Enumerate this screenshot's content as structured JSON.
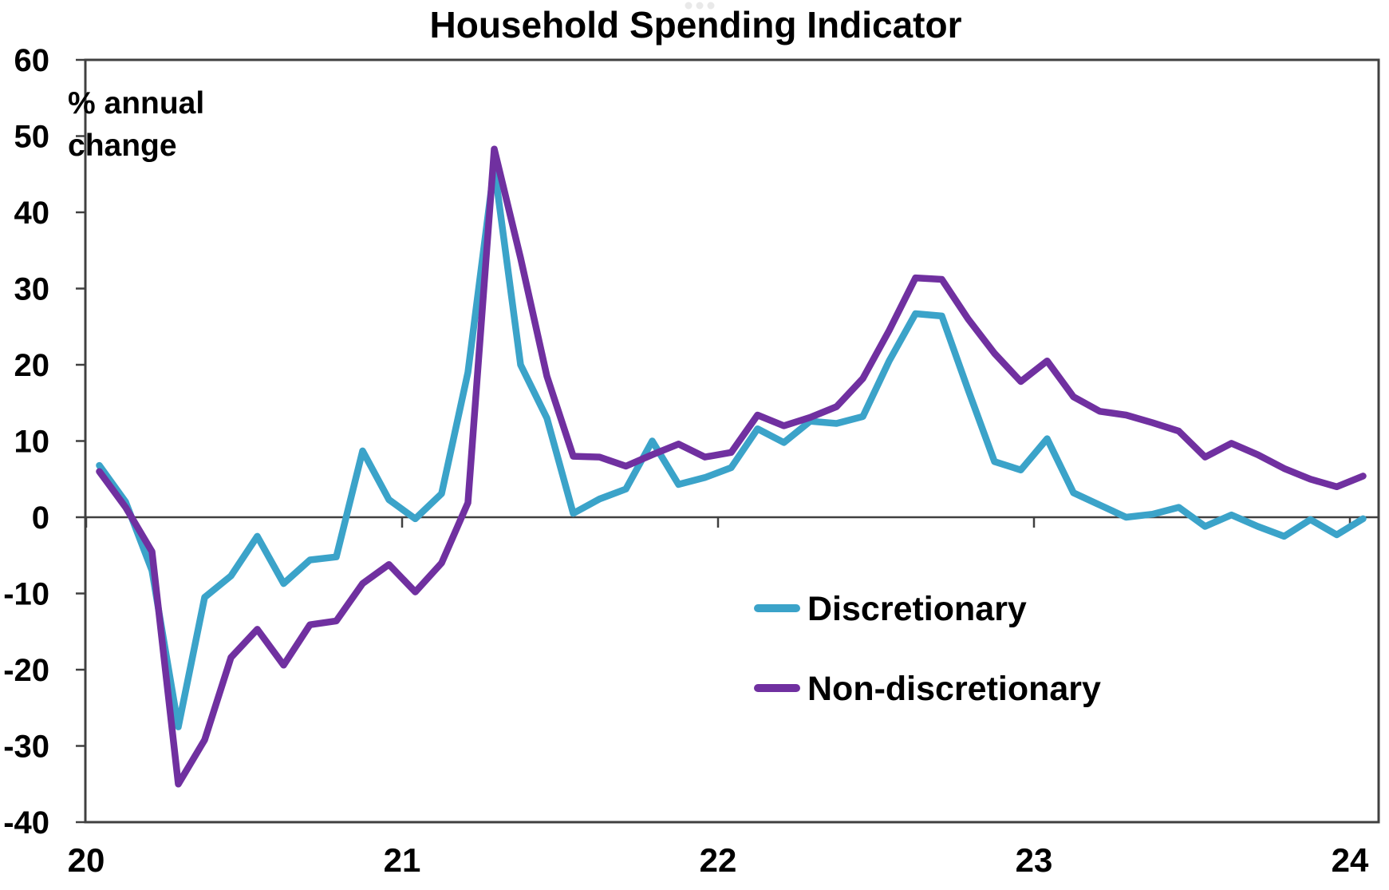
{
  "title": "Household Spending Indicator",
  "annotation": {
    "line1": "% annual",
    "line2": "change"
  },
  "legend": {
    "items": [
      {
        "label": "Discretionary",
        "color": "#3BA3C9"
      },
      {
        "label": "Non-discretionary",
        "color": "#7030A0"
      }
    ]
  },
  "axes": {
    "y_tick_labels": [
      "60",
      "50",
      "40",
      "30",
      "20",
      "10",
      "0",
      "-10",
      "-20",
      "-30",
      "-40"
    ],
    "x_tick_labels": [
      "20",
      "21",
      "22",
      "23",
      "24"
    ]
  },
  "colors": {
    "axis": "#404040",
    "text": "#000000",
    "background": "#FFFFFF",
    "discretionary": "#3BA3C9",
    "non_discretionary": "#7030A0",
    "watermark_dots": "#E9E9E9"
  },
  "chart_data": {
    "type": "line",
    "title": "Household Spending Indicator",
    "ylabel": "% annual change",
    "ylim": [
      -40,
      60
    ],
    "y_ticks": [
      60,
      50,
      40,
      30,
      20,
      10,
      0,
      -10,
      -20,
      -30,
      -40
    ],
    "grid": "off",
    "legend_position": "inside lower right",
    "x_axis": {
      "frequency": "monthly",
      "start": "2020-01",
      "end": "2024-01",
      "year_labels": [
        "20",
        "21",
        "22",
        "23",
        "24"
      ]
    },
    "series": [
      {
        "name": "Discretionary",
        "color": "#3BA3C9",
        "values": [
          6.8,
          2.0,
          -7.0,
          -27.5,
          -10.5,
          -7.7,
          -2.5,
          -8.7,
          -5.6,
          -5.2,
          8.7,
          2.3,
          -0.2,
          3.1,
          19.0,
          46.0,
          20.0,
          13.0,
          0.5,
          2.4,
          3.7,
          10.0,
          4.3,
          5.2,
          6.5,
          11.6,
          9.8,
          12.6,
          12.3,
          13.2,
          20.5,
          26.7,
          26.4,
          16.7,
          7.3,
          6.2,
          10.3,
          3.2,
          1.6,
          0.0,
          0.4,
          1.3,
          -1.2,
          0.3,
          -1.2,
          -2.5,
          -0.3,
          -2.3,
          -0.2
        ]
      },
      {
        "name": "Non-discretionary",
        "color": "#7030A0",
        "values": [
          6.0,
          1.3,
          -4.5,
          -35.0,
          -29.2,
          -18.4,
          -14.7,
          -19.4,
          -14.1,
          -13.6,
          -8.7,
          -6.2,
          -9.8,
          -6.0,
          1.9,
          48.3,
          34.0,
          18.5,
          8.0,
          7.9,
          6.7,
          8.2,
          9.6,
          7.9,
          8.5,
          13.4,
          12.0,
          13.1,
          14.5,
          18.2,
          24.5,
          31.4,
          31.2,
          26.0,
          21.5,
          17.8,
          20.5,
          15.8,
          13.9,
          13.4,
          12.4,
          11.3,
          7.9,
          9.7,
          8.2,
          6.4,
          5.0,
          4.0,
          5.4
        ]
      }
    ]
  }
}
